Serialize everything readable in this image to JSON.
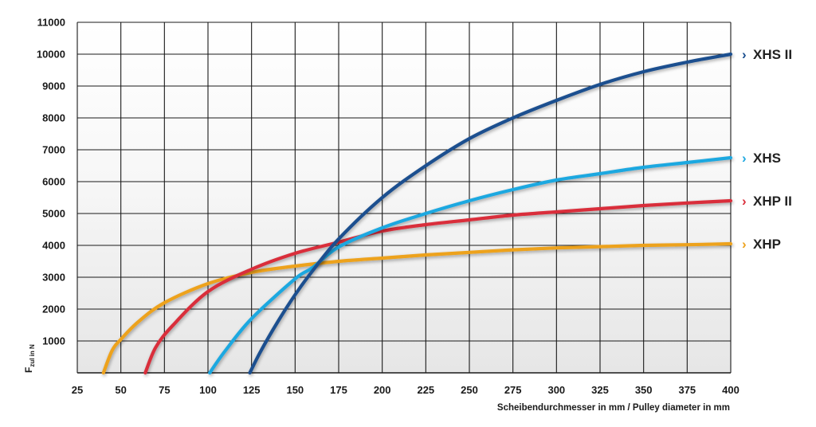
{
  "chart_data": {
    "type": "line",
    "title": "",
    "xlabel": "Scheibendurchmesser in mm / Pulley diameter in mm",
    "ylabel": "F",
    "ylabel_sub": "zul in N",
    "xlim": [
      25,
      400
    ],
    "ylim": [
      0,
      11000
    ],
    "x_ticks": [
      25,
      50,
      75,
      100,
      125,
      150,
      175,
      200,
      225,
      250,
      275,
      300,
      325,
      350,
      375,
      400
    ],
    "y_ticks": [
      1000,
      2000,
      3000,
      4000,
      5000,
      6000,
      7000,
      8000,
      9000,
      10000,
      11000
    ],
    "grid": true,
    "legend_position": "right",
    "legend_marker": "›",
    "series": [
      {
        "name": "XHS II",
        "color": "#1b4f8f",
        "x": [
          124,
          130,
          140,
          150,
          160,
          175,
          200,
          225,
          250,
          275,
          300,
          325,
          350,
          375,
          400
        ],
        "y": [
          0,
          650,
          1600,
          2450,
          3200,
          4200,
          5500,
          6500,
          7350,
          8000,
          8550,
          9050,
          9450,
          9750,
          10000
        ]
      },
      {
        "name": "XHS",
        "color": "#1fa8e0",
        "x": [
          101,
          110,
          125,
          150,
          160,
          175,
          200,
          225,
          250,
          275,
          300,
          325,
          350,
          375,
          400
        ],
        "y": [
          0,
          700,
          1700,
          2950,
          3300,
          3950,
          4550,
          5000,
          5400,
          5750,
          6050,
          6250,
          6450,
          6600,
          6750
        ]
      },
      {
        "name": "XHP II",
        "color": "#d92e3a",
        "x": [
          64,
          70,
          80,
          100,
          125,
          150,
          175,
          200,
          225,
          250,
          275,
          300,
          325,
          350,
          375,
          400
        ],
        "y": [
          0,
          800,
          1500,
          2550,
          3250,
          3750,
          4100,
          4450,
          4650,
          4800,
          4950,
          5050,
          5150,
          5250,
          5330,
          5400
        ]
      },
      {
        "name": "XHP",
        "color": "#eda21d",
        "x": [
          40,
          45,
          50,
          60,
          75,
          100,
          125,
          150,
          175,
          200,
          225,
          250,
          275,
          300,
          325,
          350,
          375,
          400
        ],
        "y": [
          0,
          700,
          1050,
          1600,
          2200,
          2800,
          3150,
          3350,
          3500,
          3600,
          3700,
          3780,
          3860,
          3920,
          3960,
          4000,
          4020,
          4050
        ]
      }
    ]
  }
}
